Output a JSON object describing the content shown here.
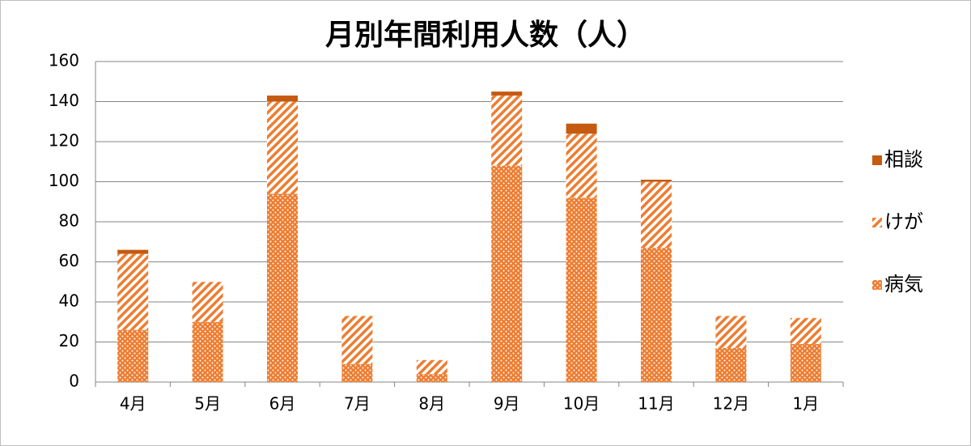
{
  "chart_data": {
    "type": "stacked_bar",
    "title": "月別年間利用人数（人）",
    "categories": [
      "4月",
      "5月",
      "6月",
      "7月",
      "8月",
      "9月",
      "10月",
      "11月",
      "12月",
      "1月"
    ],
    "series": [
      {
        "name": "病気",
        "color": "#ED7D31",
        "pattern": "dots",
        "values": [
          26,
          30,
          94,
          9,
          4,
          108,
          92,
          67,
          17,
          19
        ]
      },
      {
        "name": "けが",
        "color": "#ED7D31",
        "pattern": "stripes",
        "values": [
          38,
          20,
          46,
          24,
          7,
          35,
          32,
          33,
          16,
          13
        ]
      },
      {
        "name": "相談",
        "color": "#C55A11",
        "pattern": "solid",
        "values": [
          2,
          0,
          3,
          0,
          0,
          2,
          5,
          1,
          0,
          0
        ]
      }
    ],
    "ylim": [
      0,
      160
    ],
    "yticks": [
      0,
      20,
      40,
      60,
      80,
      100,
      120,
      140,
      160
    ],
    "grid": true,
    "legend": "right"
  }
}
